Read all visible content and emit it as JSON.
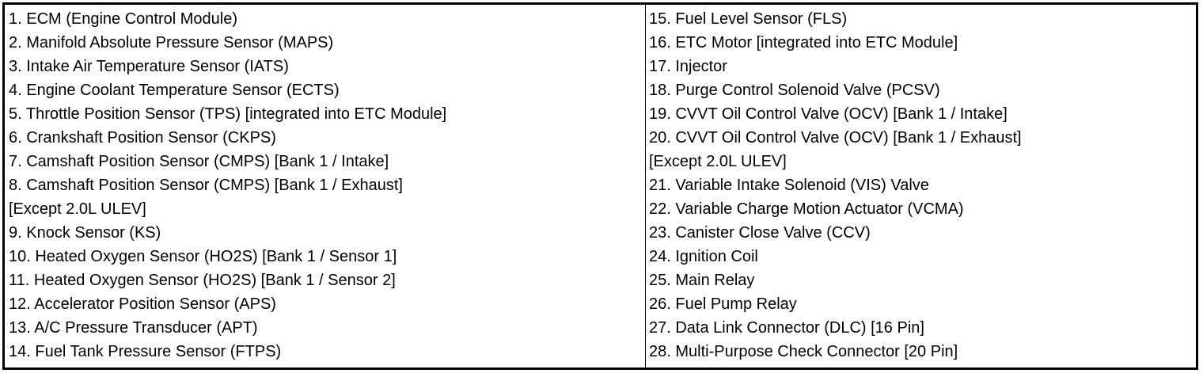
{
  "left_column": [
    "1. ECM (Engine Control Module)",
    "2. Manifold Absolute Pressure Sensor (MAPS)",
    "3. Intake Air Temperature Sensor (IATS)",
    "4. Engine Coolant Temperature Sensor (ECTS)",
    "5. Throttle Position Sensor (TPS) [integrated into ETC Module]",
    "6. Crankshaft Position Sensor (CKPS)",
    "7. Camshaft Position Sensor (CMPS) [Bank 1 / Intake]",
    "8. Camshaft Position Sensor (CMPS) [Bank 1 / Exhaust]",
    "[Except 2.0L ULEV]",
    "9. Knock Sensor (KS)",
    "10. Heated Oxygen Sensor (HO2S) [Bank 1 / Sensor 1]",
    "11. Heated Oxygen Sensor (HO2S) [Bank 1 / Sensor 2]",
    "12. Accelerator Position Sensor (APS)",
    "13. A/C Pressure Transducer (APT)",
    "14. Fuel Tank Pressure Sensor (FTPS)"
  ],
  "right_column": [
    "15. Fuel Level Sensor (FLS)",
    "16. ETC Motor [integrated into ETC Module]",
    "17. Injector",
    "18. Purge Control Solenoid Valve (PCSV)",
    "19. CVVT Oil Control Valve (OCV) [Bank 1 / Intake]",
    "20. CVVT Oil Control Valve (OCV) [Bank 1 / Exhaust]",
    "[Except 2.0L ULEV]",
    "21. Variable Intake Solenoid (VIS) Valve",
    "22. Variable Charge Motion Actuator (VCMA)",
    "23. Canister Close Valve (CCV)",
    "24. Ignition Coil",
    "25. Main Relay",
    "26. Fuel Pump Relay",
    "27. Data Link Connector (DLC) [16 Pin]",
    "28. Multi-Purpose Check Connector [20 Pin]"
  ]
}
